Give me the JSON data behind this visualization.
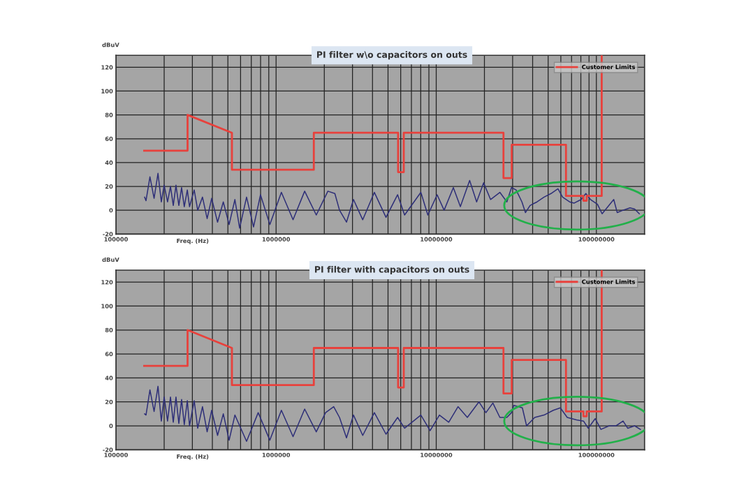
{
  "chart_data": [
    {
      "type": "line",
      "title": "PI filter w\\o capacitors on outs",
      "xlabel": "Freq. (Hz)",
      "ylabel": "dBuV",
      "log": "x",
      "xlim": [
        100000,
        200000000
      ],
      "xticks": [
        100000,
        1000000,
        10000000,
        100000000
      ],
      "ylim": [
        -20,
        130
      ],
      "yticks": [
        -20,
        0,
        20,
        40,
        60,
        80,
        100,
        120
      ],
      "grid": true,
      "legend": "top right",
      "series": [
        {
          "color": "#2e2f78",
          "x": [
            151000,
            154000,
            163000,
            173000,
            183000,
            192000,
            200000,
            210000,
            219000,
            228000,
            237000,
            247000,
            257000,
            267000,
            279000,
            288000,
            308000,
            324000,
            347000,
            371000,
            396000,
            431000,
            468000,
            509000,
            553000,
            592000,
            654000,
            723000,
            799000,
            914000,
            1079000,
            1276000,
            1508000,
            1782000,
            2106000,
            2328000,
            2489000,
            2752000,
            3042000,
            3476000,
            4109000,
            4857000,
            5739000,
            6346000,
            8017000,
            8863000,
            10130000,
            11200000,
            12790000,
            14150000,
            16170000,
            17880000,
            19760000,
            21840000,
            24970000,
            27610000,
            29510000,
            31550000,
            34290000,
            36060000,
            38550000,
            42620000,
            47120000,
            52080000,
            57560000,
            61550000,
            68040000,
            72720000,
            80400000,
            85960000,
            91900000,
            101600000,
            108600000,
            118100000,
            128400000,
            135000000,
            146800000,
            162200000,
            173400000,
            185400000
          ],
          "values": [
            11,
            8,
            28,
            10,
            31,
            7,
            21,
            7,
            20,
            4,
            21,
            4,
            19,
            3,
            17,
            3,
            17,
            0,
            11,
            -7,
            10,
            -10,
            7,
            -12,
            9,
            -15,
            11,
            -14,
            13,
            -12,
            15,
            -8,
            16,
            -4,
            16,
            14,
            0,
            -10,
            9,
            -8,
            15,
            -6,
            13,
            -4,
            15,
            -4,
            13,
            0,
            19,
            3,
            25,
            7,
            23,
            9,
            15,
            7,
            19,
            17,
            7,
            -2,
            4,
            7,
            11,
            14,
            18,
            11,
            7,
            6,
            9,
            14,
            9,
            5,
            -3,
            3,
            9,
            -2,
            0,
            2,
            1,
            -3
          ]
        },
        {
          "name": "Customer Limits",
          "color": "#e8413c",
          "x": [
            150000,
            280000,
            280000,
            530000,
            530000,
            1720000,
            1720000,
            5780000,
            5780000,
            6270000,
            6270000,
            26300000,
            26300000,
            29600000,
            29600000,
            64600000,
            64600000,
            83000000,
            83000000,
            87000000,
            87000000,
            108000000,
            108000000
          ],
          "values": [
            50,
            50,
            80,
            65,
            34,
            34,
            65,
            65,
            32,
            32,
            65,
            65,
            27,
            27,
            55,
            55,
            12,
            12,
            8,
            8,
            12,
            12,
            130
          ]
        }
      ]
    },
    {
      "type": "line",
      "title": "PI filter with capacitors on outs",
      "xlabel": "Freq. (Hz)",
      "ylabel": "dBuV",
      "log": "x",
      "xlim": [
        100000,
        200000000
      ],
      "xticks": [
        100000,
        1000000,
        10000000,
        100000000
      ],
      "ylim": [
        -20,
        130
      ],
      "yticks": [
        -20,
        0,
        20,
        40,
        60,
        80,
        100,
        120
      ],
      "grid": true,
      "legend": "top right",
      "series": [
        {
          "color": "#2e2f78",
          "x": [
            151000,
            154000,
            163000,
            173000,
            183000,
            192000,
            200000,
            210000,
            219000,
            228000,
            237000,
            247000,
            257000,
            267000,
            279000,
            288000,
            308000,
            324000,
            347000,
            371000,
            396000,
            431000,
            468000,
            509000,
            553000,
            654000,
            773000,
            914000,
            1079000,
            1276000,
            1508000,
            1782000,
            2037000,
            2289000,
            2489000,
            2752000,
            3042000,
            3476000,
            4109000,
            4857000,
            5739000,
            6346000,
            8017000,
            9160000,
            10470000,
            11970000,
            13680000,
            15640000,
            18480000,
            20430000,
            22580000,
            24970000,
            27610000,
            29510000,
            30500000,
            34500000,
            36670000,
            41210000,
            47120000,
            53850000,
            59530000,
            65800000,
            75200000,
            83130000,
            88880000,
            98270000,
            106800000,
            120100000,
            132700000,
            146800000,
            156900000,
            173400000,
            188500000
          ],
          "values": [
            10,
            9,
            30,
            12,
            33,
            4,
            24,
            4,
            24,
            3,
            24,
            2,
            22,
            1,
            21,
            0,
            21,
            -2,
            16,
            -5,
            13,
            -8,
            10,
            -12,
            9,
            -13,
            11,
            -12,
            13,
            -9,
            14,
            -5,
            11,
            16,
            7,
            -10,
            9,
            -8,
            11,
            -7,
            7,
            -2,
            9,
            -4,
            9,
            3,
            16,
            7,
            20,
            11,
            19,
            7,
            7,
            11,
            17,
            15,
            0,
            7,
            9,
            13,
            15,
            7,
            5,
            4,
            -2,
            6,
            -3,
            0,
            0,
            4,
            -2,
            0,
            -3
          ]
        },
        {
          "name": "Customer Limits",
          "color": "#e8413c",
          "x": [
            150000,
            280000,
            280000,
            530000,
            530000,
            1720000,
            1720000,
            5780000,
            5780000,
            6270000,
            6270000,
            26300000,
            26300000,
            29600000,
            29600000,
            64600000,
            64600000,
            83000000,
            83000000,
            87000000,
            87000000,
            108000000,
            108000000
          ],
          "values": [
            50,
            50,
            80,
            65,
            34,
            34,
            65,
            65,
            32,
            32,
            65,
            65,
            27,
            27,
            55,
            55,
            12,
            12,
            8,
            8,
            12,
            12,
            130
          ]
        }
      ]
    }
  ]
}
